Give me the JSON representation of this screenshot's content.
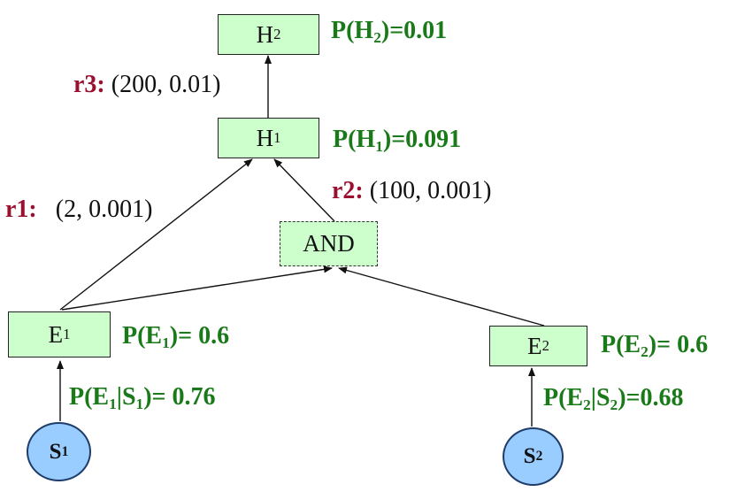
{
  "nodes": {
    "h2": {
      "base": "H",
      "sub": "2"
    },
    "h1": {
      "base": "H",
      "sub": "1"
    },
    "and": {
      "text": "AND"
    },
    "e1": {
      "base": "E",
      "sub": "1"
    },
    "e2": {
      "base": "E",
      "sub": "2"
    },
    "s1": {
      "base": "S",
      "sub": "1"
    },
    "s2": {
      "base": "S",
      "sub": "2"
    }
  },
  "probabilities": {
    "h2": {
      "pre": "P(H",
      "sub": "2",
      "post": ")=0.01"
    },
    "h1": {
      "pre": "P(H",
      "sub": "1",
      "post": ")=0.091"
    },
    "e1": {
      "pre": "P(E",
      "sub": "1",
      "post": ")= 0.6"
    },
    "e2": {
      "pre": "P(E",
      "sub": "2",
      "post": ")= 0.6"
    },
    "e1_given_s1": {
      "pre": "P(E",
      "sub1": "1",
      "mid": "|S",
      "sub2": "1",
      "post": ")= 0.76"
    },
    "e2_given_s2": {
      "pre": "P(E",
      "sub1": "2",
      "mid": "|S",
      "sub2": "2",
      "post": ")=0.68"
    }
  },
  "rules": {
    "r1": {
      "name": "r1:",
      "params": "(2, 0.001)"
    },
    "r2": {
      "name": "r2:",
      "params": "(100, 0.001)"
    },
    "r3": {
      "name": "r3:",
      "params": "(200, 0.01)"
    }
  },
  "colors": {
    "node_fill": "#ccffcc",
    "leaf_fill": "#99ccff",
    "probability_text": "#1a7a1a",
    "rule_text": "#9a1030"
  }
}
